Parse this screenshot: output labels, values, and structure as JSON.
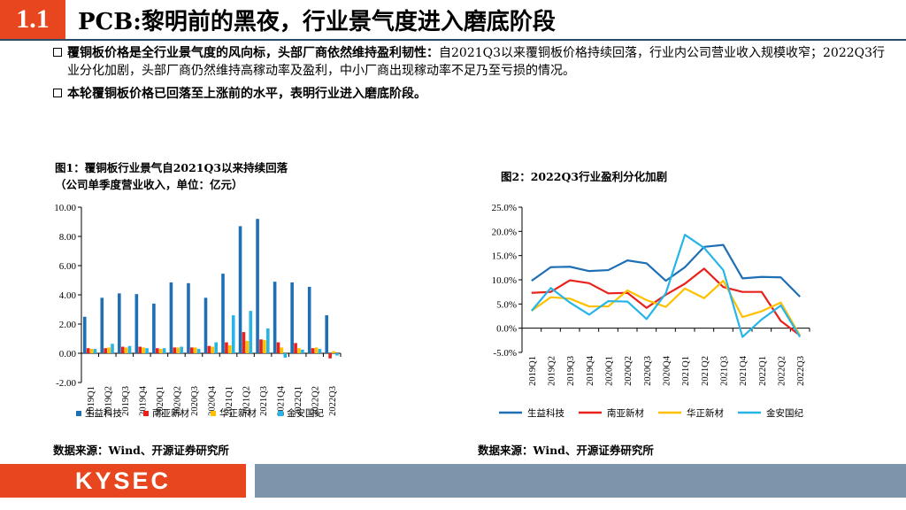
{
  "header": {
    "section_number": "1.1",
    "title": "PCB:黎明前的黑夜，行业景气度进入磨底阶段"
  },
  "bullets": [
    {
      "head": "覆铜板价格是全行业景气度的风向标，头部厂商依然维持盈利韧性：",
      "body": "自2021Q3以来覆铜板价格持续回落，行业内公司营业收入规模收窄；2022Q3行业分化加剧，头部厂商仍然维持高稼动率及盈利，中小厂商出现稼动率不足乃至亏损的情况。"
    },
    {
      "head": "本轮覆铜板价格已回落至上涨前的水平，表明行业进入磨底阶段。",
      "body": ""
    }
  ],
  "figure1": {
    "title_line1": "图1：覆铜板行业景气自2021Q3以来持续回落",
    "title_line2": "（公司单季度营业收入，单位：亿元）",
    "source": "数据来源：Wind、开源证券研究所"
  },
  "figure2": {
    "title": "图2：2022Q3行业盈利分化加剧",
    "source": "数据来源：Wind、开源证券研究所"
  },
  "footer": {
    "logo": "KYSEC"
  },
  "chart_data": [
    {
      "type": "bar",
      "title": "图1：覆铜板行业景气自2021Q3以来持续回落（公司单季度营业收入，单位：亿元）",
      "ylim": [
        -2,
        10
      ],
      "yticks": [
        "-2.00",
        "0.00",
        "2.00",
        "4.00",
        "6.00",
        "8.00",
        "10.00"
      ],
      "ytick_values": [
        -2,
        0,
        2,
        4,
        6,
        8,
        10
      ],
      "categories": [
        "2019Q1",
        "2019Q2",
        "2019Q3",
        "2019Q4",
        "2020Q1",
        "2020Q2",
        "2020Q3",
        "2020Q4",
        "2021Q1",
        "2021Q2",
        "2021Q3",
        "2021Q4",
        "2022Q1",
        "2022Q2",
        "2022Q3"
      ],
      "series": [
        {
          "name": "生益科技",
          "color": "#1f6fb5",
          "values": [
            2.5,
            3.8,
            4.1,
            4.05,
            3.4,
            4.85,
            4.8,
            3.8,
            5.45,
            8.7,
            9.2,
            4.9,
            4.85,
            4.55,
            2.6
          ]
        },
        {
          "name": "南亚新材",
          "color": "#e8211c",
          "values": [
            0.35,
            0.35,
            0.45,
            0.45,
            0.35,
            0.4,
            0.4,
            0.5,
            0.75,
            1.45,
            0.95,
            0.75,
            0.7,
            0.35,
            -0.35
          ]
        },
        {
          "name": "华正新材",
          "color": "#ffc000",
          "values": [
            0.3,
            0.4,
            0.4,
            0.4,
            0.3,
            0.4,
            0.4,
            0.45,
            0.55,
            0.85,
            0.9,
            0.4,
            0.35,
            0.4,
            0.15
          ]
        },
        {
          "name": "金安国纪",
          "color": "#27b5e8",
          "values": [
            0.3,
            0.65,
            0.5,
            0.35,
            0.35,
            0.45,
            0.3,
            0.75,
            2.6,
            2.9,
            1.7,
            -0.3,
            0.25,
            0.3,
            -0.15
          ]
        }
      ],
      "legend": "bottom"
    },
    {
      "type": "line",
      "title": "图2：2022Q3行业盈利分化加剧",
      "ylim": [
        -5,
        25
      ],
      "yticks": [
        "-5.0%",
        "0.0%",
        "5.0%",
        "10.0%",
        "15.0%",
        "20.0%",
        "25.0%"
      ],
      "ytick_values": [
        -5,
        0,
        5,
        10,
        15,
        20,
        25
      ],
      "categories": [
        "2019Q1",
        "2019Q2",
        "2019Q3",
        "2019Q4",
        "2020Q1",
        "2020Q2",
        "2020Q3",
        "2020Q4",
        "2021Q1",
        "2021Q2",
        "2021Q3",
        "2021Q4",
        "2022Q1",
        "2022Q2",
        "2022Q3"
      ],
      "series": [
        {
          "name": "生益科技",
          "color": "#1f6fb5",
          "values": [
            9.8,
            12.6,
            12.7,
            11.8,
            12.0,
            14.0,
            13.4,
            9.8,
            12.6,
            16.8,
            17.2,
            10.3,
            10.6,
            10.5,
            6.5
          ]
        },
        {
          "name": "南亚新材",
          "color": "#e8211c",
          "values": [
            7.3,
            7.5,
            9.9,
            9.3,
            7.2,
            7.3,
            4.2,
            6.9,
            9.2,
            12.3,
            8.5,
            7.5,
            7.5,
            1.5,
            -1.5
          ]
        },
        {
          "name": "华正新材",
          "color": "#ffc000",
          "values": [
            3.6,
            6.4,
            6.1,
            4.5,
            4.5,
            7.8,
            5.8,
            4.4,
            8.2,
            6.2,
            9.8,
            2.3,
            3.5,
            5.3,
            -1.5
          ]
        },
        {
          "name": "金安国纪",
          "color": "#27b5e8",
          "values": [
            3.6,
            8.3,
            5.3,
            2.8,
            5.6,
            5.5,
            1.9,
            7.2,
            19.3,
            16.6,
            12.0,
            -1.8,
            1.8,
            4.7,
            -1.8
          ]
        }
      ],
      "legend": "bottom"
    }
  ]
}
